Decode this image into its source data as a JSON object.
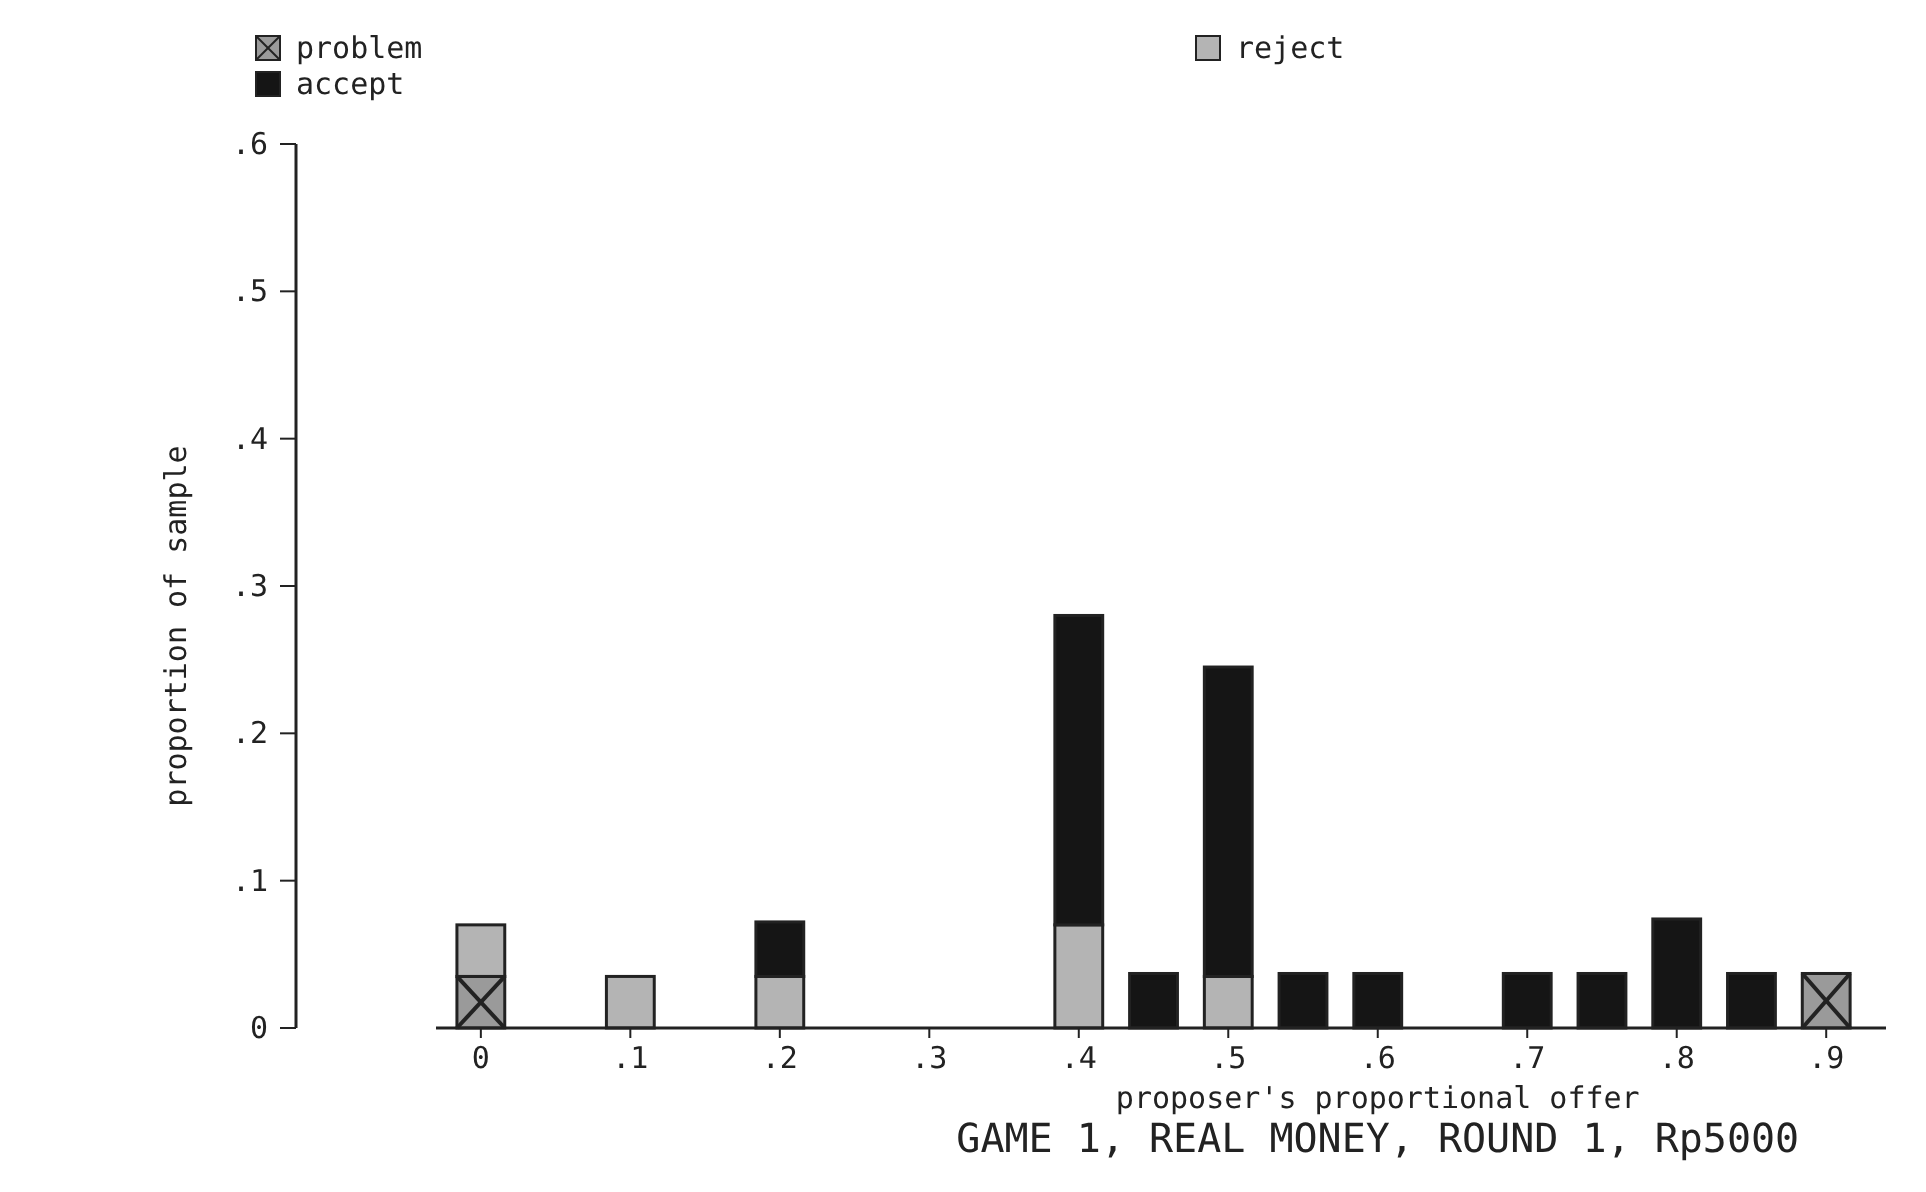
{
  "chart_data": {
    "type": "bar",
    "stacked": true,
    "title": "GAME 1, REAL MONEY, ROUND 1, Rp5000",
    "xlabel": "proposer's proportional offer",
    "ylabel": "proportion of sample",
    "x": [
      0,
      0.1,
      0.2,
      0.4,
      0.45,
      0.5,
      0.55,
      0.6,
      0.7,
      0.75,
      0.8,
      0.85,
      0.9
    ],
    "series": [
      {
        "name": "problem",
        "color": "#9a9a9a",
        "values": [
          0.035,
          null,
          null,
          null,
          null,
          null,
          null,
          null,
          null,
          null,
          null,
          null,
          0.037
        ]
      },
      {
        "name": "reject",
        "color": "#b4b4b4",
        "values": [
          0.035,
          0.035,
          0.035,
          0.07,
          null,
          0.035,
          null,
          null,
          null,
          null,
          null,
          null,
          null
        ]
      },
      {
        "name": "accept",
        "color": "#151515",
        "values": [
          null,
          null,
          0.037,
          0.21,
          0.037,
          0.21,
          0.037,
          0.037,
          0.037,
          0.037,
          0.074,
          0.037,
          null
        ]
      }
    ],
    "xlim": [
      -0.03,
      0.94
    ],
    "xticks": [
      0,
      {
        "value": 0.1,
        "label": ".1"
      },
      {
        "value": 0.2,
        "label": ".2"
      },
      {
        "value": 0.3,
        "label": ".3"
      },
      {
        "value": 0.4,
        "label": ".4"
      },
      {
        "value": 0.5,
        "label": ".5"
      },
      {
        "value": 0.6,
        "label": ".6"
      },
      {
        "value": 0.7,
        "label": ".7"
      },
      {
        "value": 0.8,
        "label": ".8"
      },
      {
        "value": 0.9,
        "label": ".9"
      }
    ],
    "ylim": [
      0,
      0.6
    ],
    "yticks": [
      0,
      {
        "value": 0.1,
        "label": ".1"
      },
      {
        "value": 0.2,
        "label": ".2"
      },
      {
        "value": 0.3,
        "label": ".3"
      },
      {
        "value": 0.4,
        "label": ".4"
      },
      {
        "value": 0.5,
        "label": ".5"
      },
      {
        "value": 0.6,
        "label": ".6"
      }
    ],
    "legend": "top"
  }
}
